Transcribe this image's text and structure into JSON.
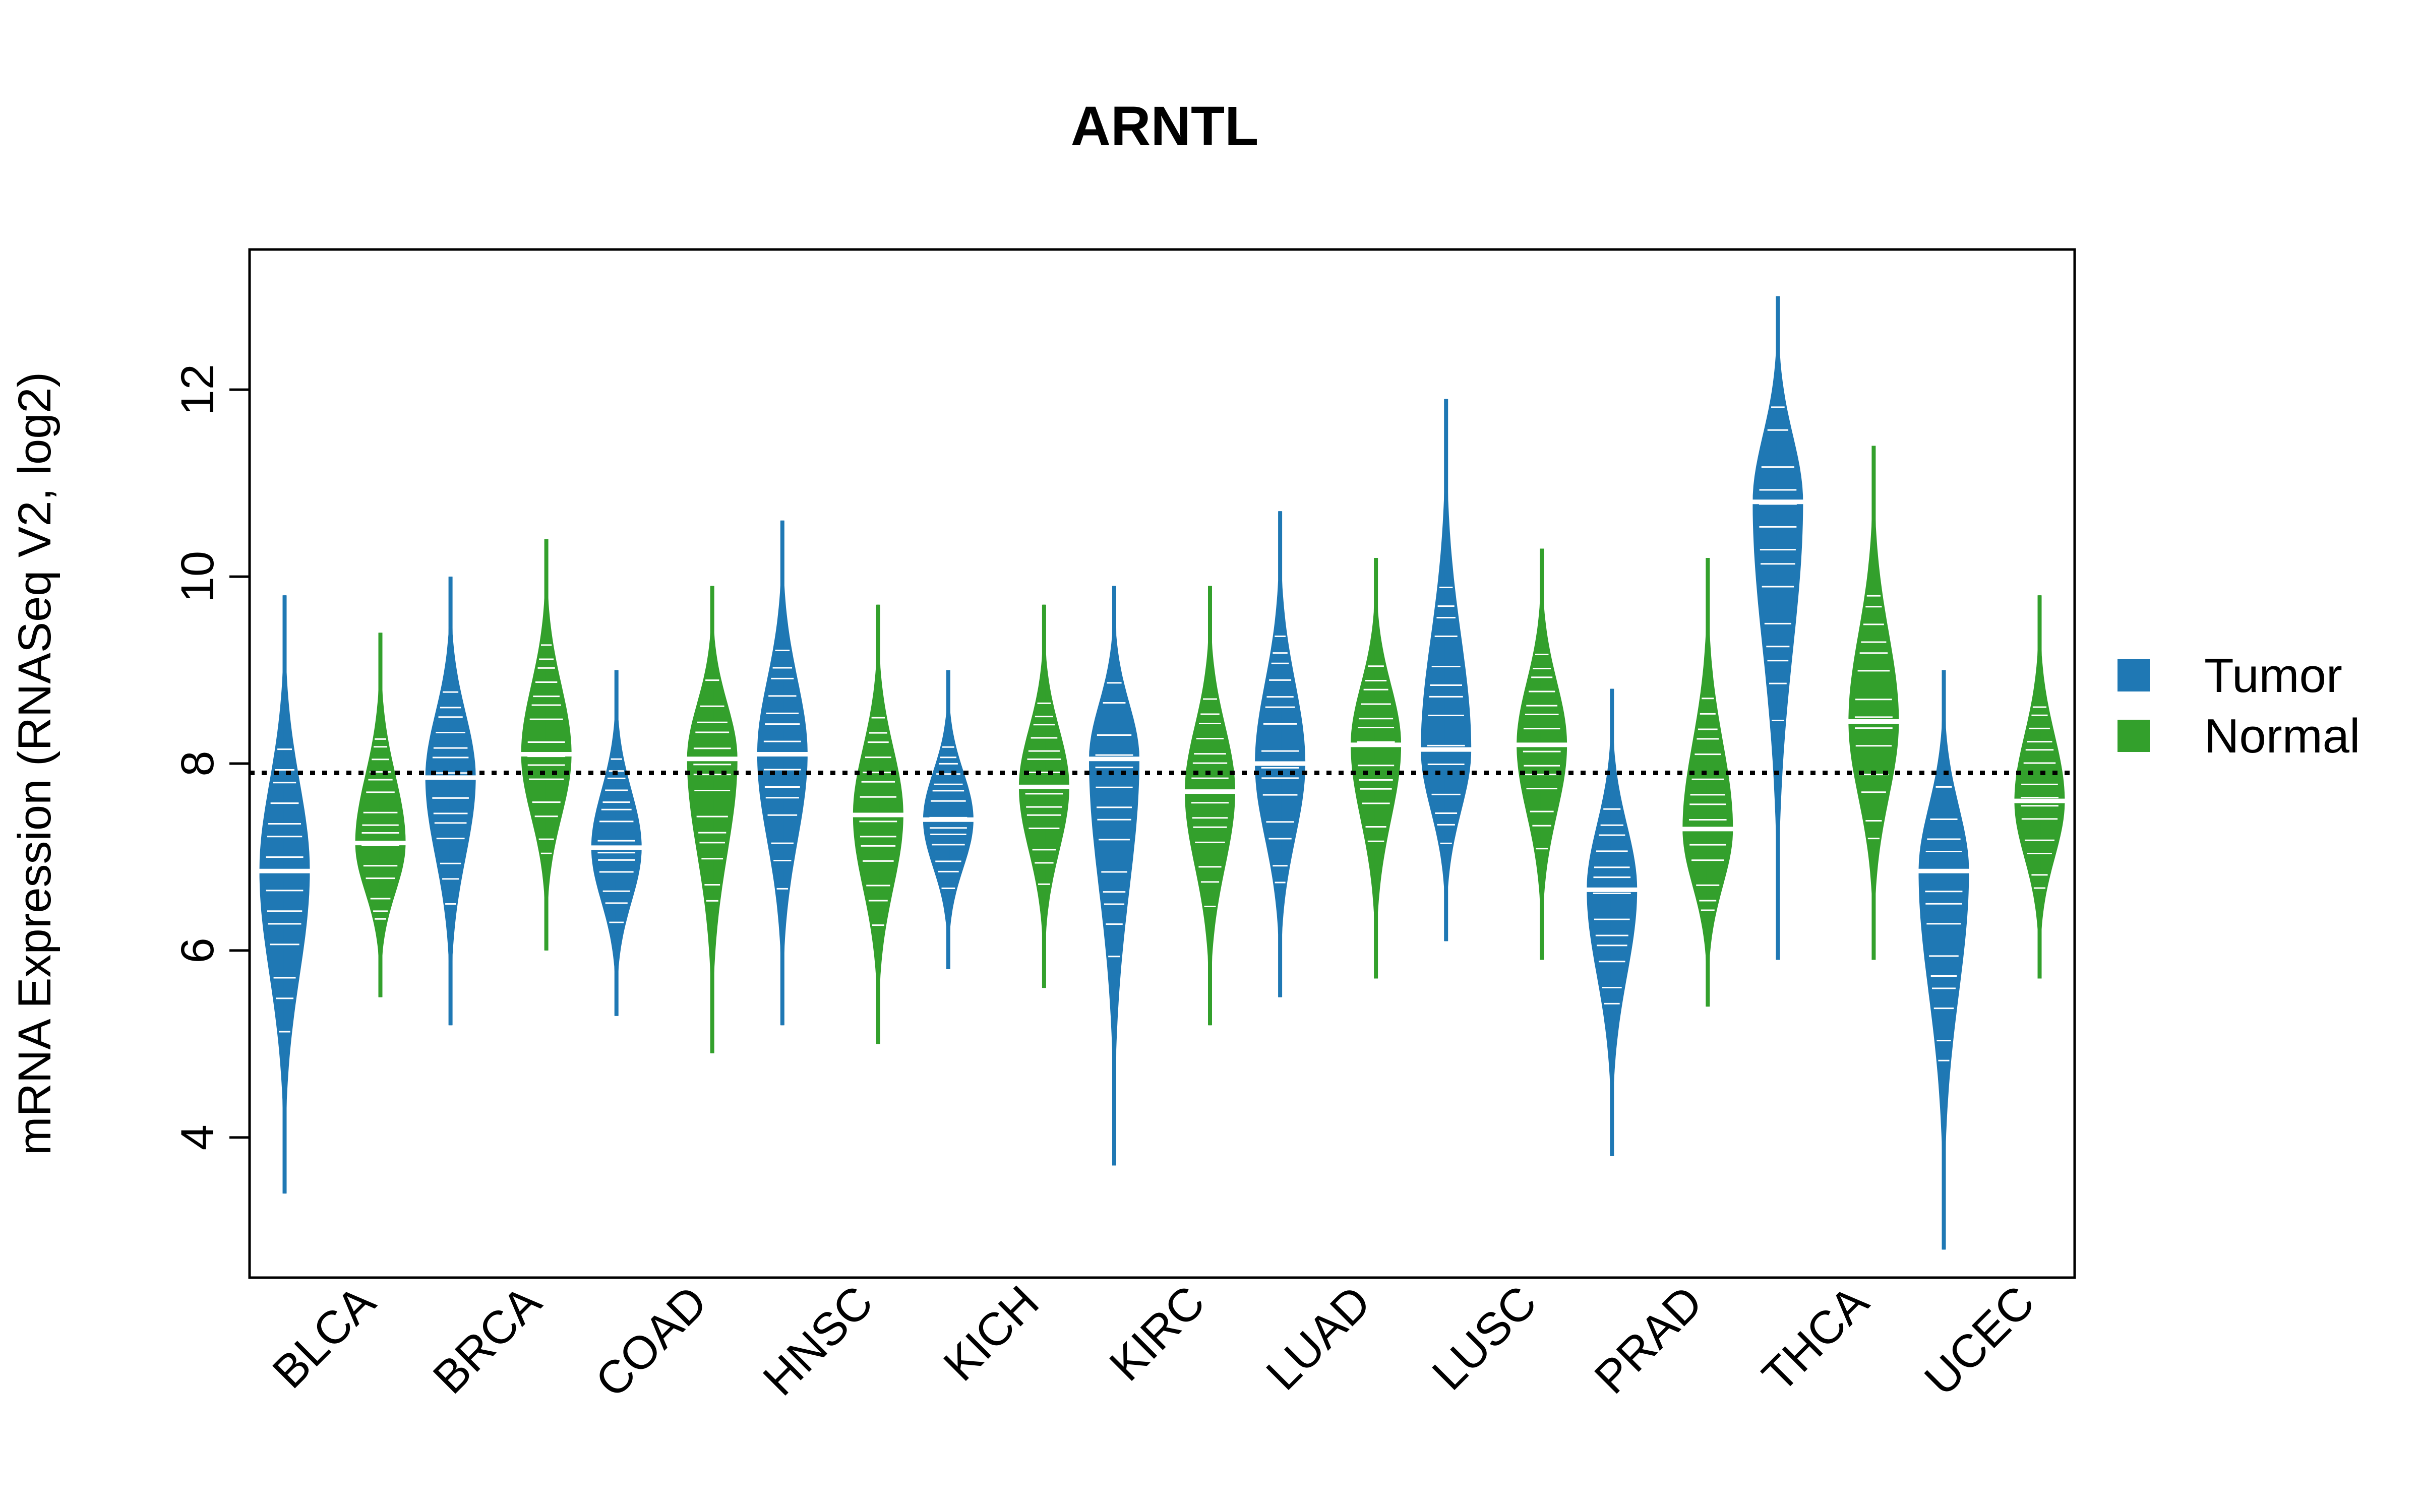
{
  "chart_data": {
    "type": "violin",
    "title": "ARNTL",
    "ylabel": "mRNA Expression (RNASeq V2, log2)",
    "xlabel": "",
    "ylim": [
      2.5,
      13.5
    ],
    "yticks": [
      4,
      6,
      8,
      10,
      12
    ],
    "reference_line": 7.9,
    "categories": [
      "BLCA",
      "BRCA",
      "COAD",
      "HNSC",
      "KICH",
      "KIRC",
      "LUAD",
      "LUSC",
      "PRAD",
      "THCA",
      "UCEC"
    ],
    "series": [
      {
        "name": "Tumor",
        "color": "#1f78b4",
        "groups": [
          {
            "min": 3.4,
            "max": 9.8,
            "median": 6.85
          },
          {
            "min": 5.2,
            "max": 10.0,
            "median": 7.85
          },
          {
            "min": 5.3,
            "max": 9.0,
            "median": 7.1
          },
          {
            "min": 5.2,
            "max": 10.6,
            "median": 8.1
          },
          {
            "min": 5.8,
            "max": 9.0,
            "median": 7.4
          },
          {
            "min": 3.7,
            "max": 9.9,
            "median": 8.05
          },
          {
            "min": 5.5,
            "max": 10.7,
            "median": 8.0
          },
          {
            "min": 6.1,
            "max": 11.9,
            "median": 8.15
          },
          {
            "min": 3.8,
            "max": 8.8,
            "median": 6.65
          },
          {
            "min": 5.9,
            "max": 13.0,
            "median": 10.8
          },
          {
            "min": 2.8,
            "max": 9.0,
            "median": 6.85
          }
        ]
      },
      {
        "name": "Normal",
        "color": "#33a02c",
        "groups": [
          {
            "min": 5.5,
            "max": 9.4,
            "median": 7.15
          },
          {
            "min": 6.0,
            "max": 10.4,
            "median": 8.1
          },
          {
            "min": 4.9,
            "max": 9.9,
            "median": 8.05
          },
          {
            "min": 5.0,
            "max": 9.7,
            "median": 7.45
          },
          {
            "min": 5.6,
            "max": 9.7,
            "median": 7.75
          },
          {
            "min": 5.2,
            "max": 9.9,
            "median": 7.7
          },
          {
            "min": 5.7,
            "max": 10.2,
            "median": 8.2
          },
          {
            "min": 5.9,
            "max": 10.3,
            "median": 8.2
          },
          {
            "min": 5.4,
            "max": 10.2,
            "median": 7.3
          },
          {
            "min": 5.9,
            "max": 11.4,
            "median": 8.45
          },
          {
            "min": 5.7,
            "max": 9.8,
            "median": 7.6
          }
        ]
      }
    ],
    "legend": {
      "position": "right"
    }
  }
}
